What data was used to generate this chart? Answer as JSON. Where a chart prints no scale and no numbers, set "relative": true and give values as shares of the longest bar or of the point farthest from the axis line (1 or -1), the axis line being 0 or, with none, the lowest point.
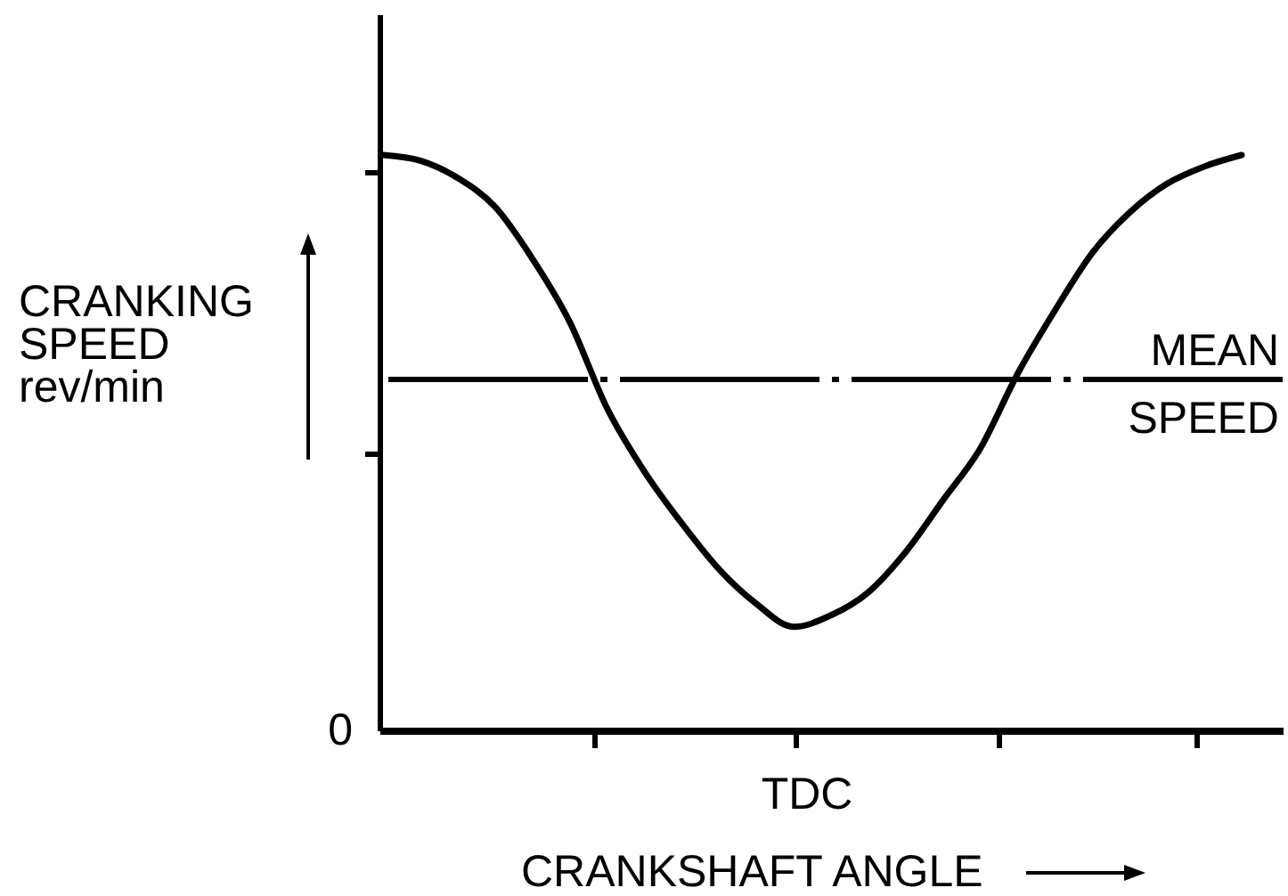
{
  "chart_data": {
    "type": "line",
    "xlabel": "CRANKSHAFT ANGLE",
    "ylabel": "CRANKING SPEED rev/min",
    "relative": true,
    "categories": [
      null,
      null,
      null,
      null,
      null,
      null,
      null,
      null,
      null,
      null,
      null,
      null,
      null,
      null,
      null,
      null,
      null,
      null,
      null,
      null,
      null,
      null,
      null,
      null
    ],
    "series": [
      {
        "color": "#000000",
        "values": [
          1.0,
          0.99,
          0.96,
          0.91,
          0.82,
          0.71,
          0.56,
          0.45,
          0.36,
          0.28,
          0.22,
          0.18,
          0.2,
          0.24,
          0.31,
          0.4,
          0.49,
          0.62,
          0.73,
          0.83,
          0.9,
          0.95,
          0.98,
          1.0
        ]
      }
    ],
    "ref_lines": [
      {
        "axis": "y",
        "value": 0.61,
        "label": "MEAN SPEED",
        "color": "#000000",
        "line_style": "dashed"
      }
    ],
    "annotations": [
      "0",
      "TDC"
    ]
  }
}
